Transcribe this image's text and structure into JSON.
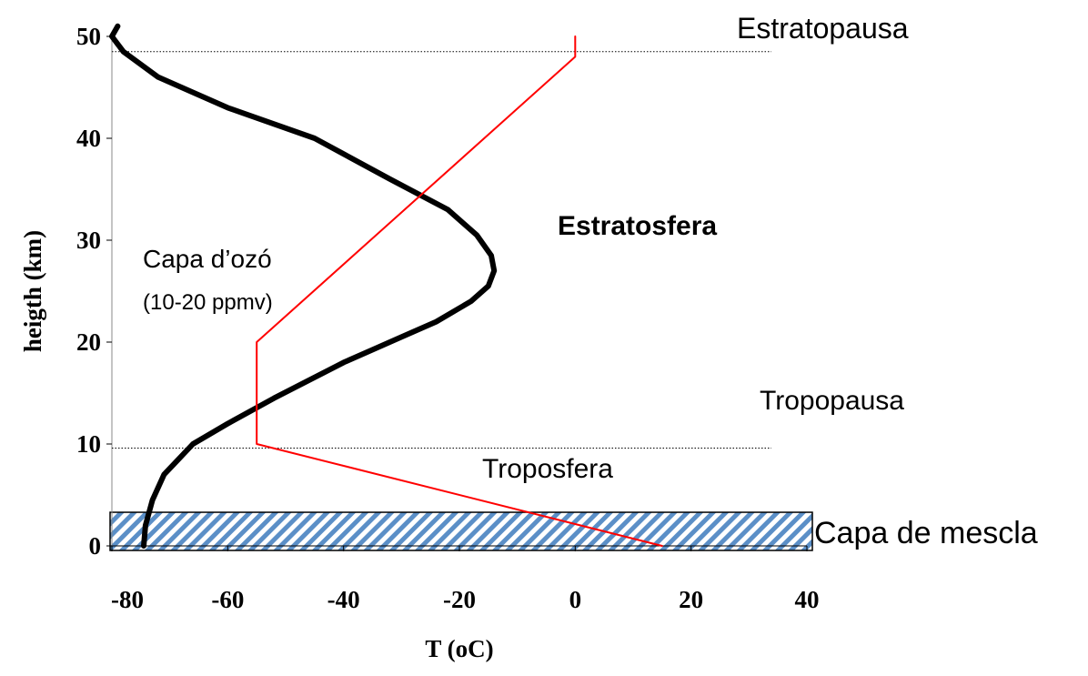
{
  "chart_data": {
    "type": "line",
    "xlabel": "T (oC)",
    "ylabel": "heigth (km)",
    "xlim": [
      -80,
      40
    ],
    "xticks": [
      -80,
      -60,
      -40,
      -20,
      0,
      20,
      40
    ],
    "ylim": [
      0,
      50
    ],
    "yticks": [
      0,
      10,
      20,
      30,
      40,
      50
    ],
    "series": [
      {
        "color": "#000000",
        "x": [
          -74.5,
          -74.2,
          -73,
          -71,
          -66,
          -60,
          -52,
          -40,
          -30,
          -24,
          -18,
          -15,
          -14,
          -14.5,
          -17,
          -22,
          -32,
          -45,
          -60,
          -72,
          -78,
          -80,
          -79
        ],
        "y": [
          0,
          2,
          4.5,
          7,
          10,
          12,
          14.5,
          18,
          20.5,
          22,
          24,
          25.5,
          27,
          28.5,
          30.5,
          33,
          36,
          40,
          43,
          46,
          48.5,
          50,
          51
        ]
      },
      {
        "color": "#ff0000",
        "x": [
          15,
          -55,
          -55,
          0,
          0
        ],
        "y": [
          0,
          10,
          20,
          48,
          50
        ]
      }
    ],
    "reference_lines": [
      9.6,
      48.5
    ],
    "mixing_layer": [
      0,
      3.3
    ],
    "annotations": [
      "Estratopausa",
      "Estratosfera",
      "Capa d’ozó",
      "(10-20 ppmv)",
      "Tropopausa",
      "Troposfera",
      "Capa de mescla"
    ]
  }
}
